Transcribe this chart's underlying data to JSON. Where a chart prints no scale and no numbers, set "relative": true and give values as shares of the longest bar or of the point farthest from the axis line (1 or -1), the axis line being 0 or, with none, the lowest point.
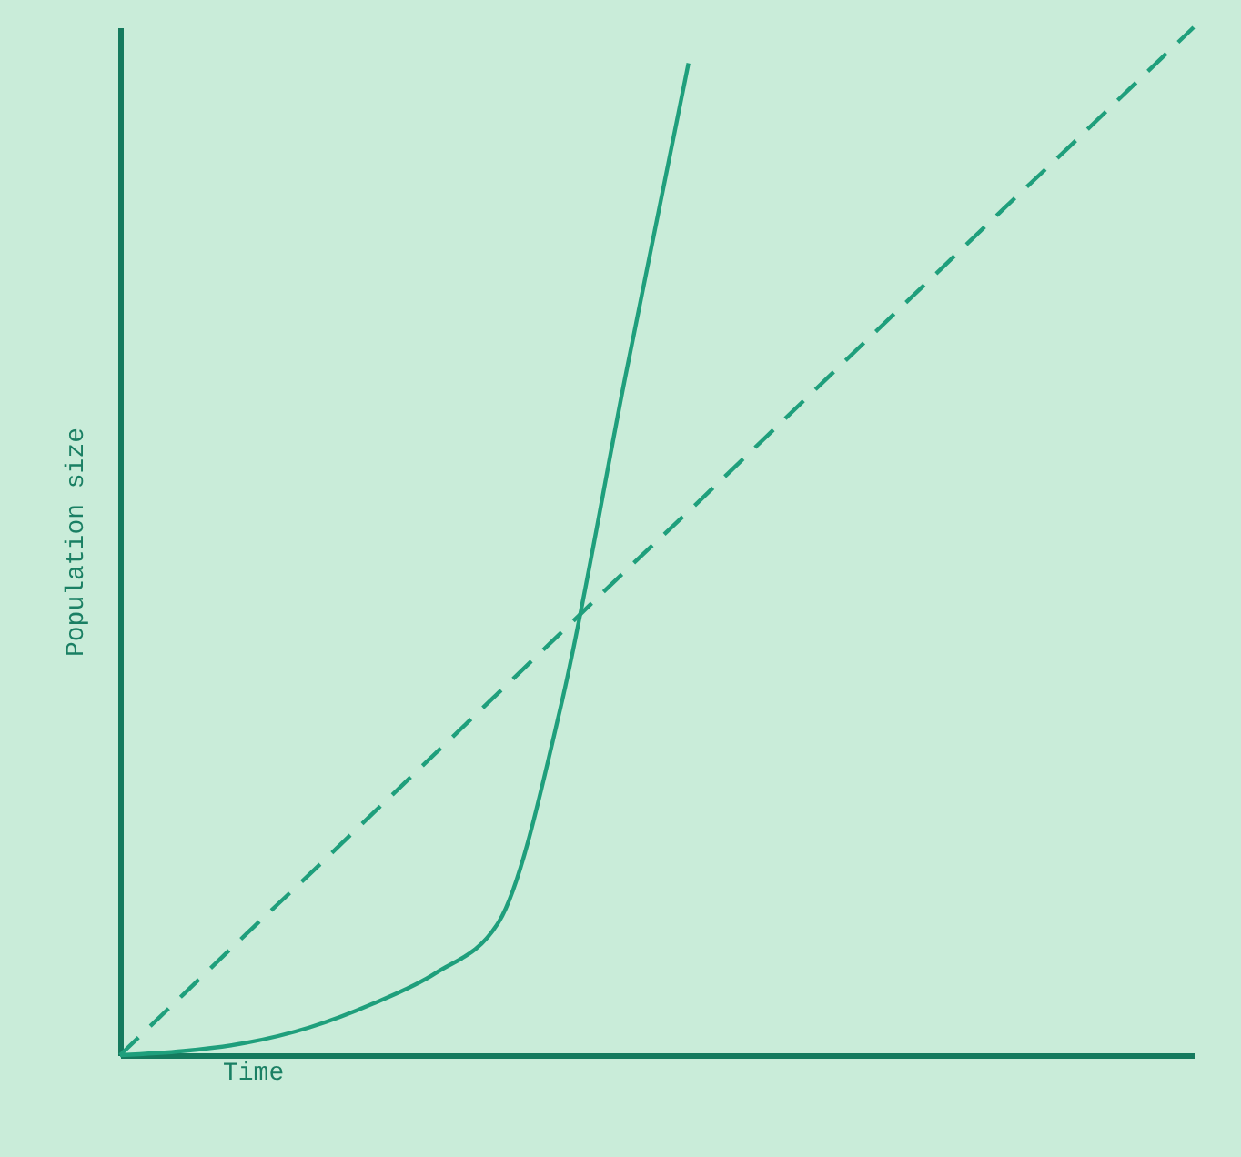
{
  "chart_data": {
    "type": "line",
    "xlabel": "Time",
    "ylabel": "Population size",
    "relative": true,
    "categories": [
      null,
      null,
      null,
      null,
      null,
      null,
      null,
      null,
      null,
      null,
      null,
      null,
      null,
      null,
      null,
      null,
      null,
      null
    ],
    "series": [
      {
        "color": "#1f9f7c",
        "line_style": "solid",
        "values": [
          0,
          0.004,
          0.012,
          0.027,
          0.05,
          0.08,
          0.13,
          0.345,
          0.66,
          0.965,
          null,
          null,
          null,
          null,
          null,
          null,
          null,
          null
        ]
      },
      {
        "color": "#1f9f7c",
        "line_style": "dashed",
        "values": [
          0,
          0.059,
          0.118,
          0.176,
          0.235,
          0.294,
          0.353,
          0.412,
          0.471,
          0.529,
          0.588,
          0.647,
          0.706,
          0.765,
          0.824,
          0.882,
          0.941,
          1
        ]
      }
    ]
  }
}
